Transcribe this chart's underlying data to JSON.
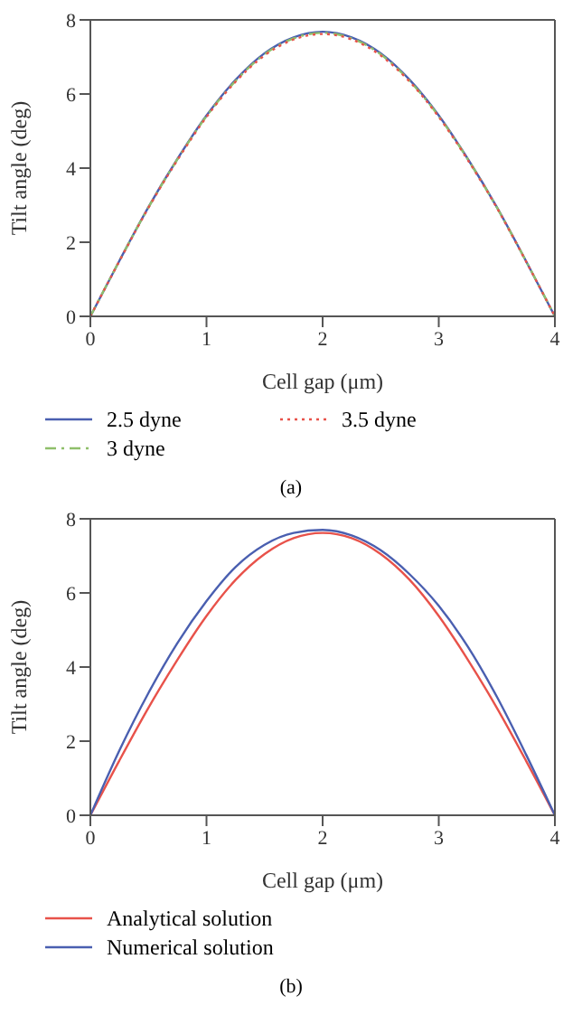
{
  "chart_data": [
    {
      "type": "line",
      "xlabel": "Cell gap (μm)",
      "ylabel": "Tilt angle (deg)",
      "x": [
        0,
        0.25,
        0.5,
        0.75,
        1,
        1.25,
        1.5,
        1.75,
        2,
        2.25,
        2.5,
        2.75,
        3,
        3.25,
        3.5,
        3.75,
        4
      ],
      "xlim": [
        0,
        4
      ],
      "xticks": [
        0,
        1,
        2,
        3,
        4
      ],
      "ylim": [
        0,
        8
      ],
      "yticks": [
        0,
        2,
        4,
        6,
        8
      ],
      "legend": "bottom",
      "grid": false,
      "annotations": [
        "(a)"
      ],
      "series": [
        {
          "name": "2.5 dyne",
          "color": "#4a5fb0",
          "line_style": "solid",
          "values": [
            0,
            1.5,
            2.95,
            4.25,
            5.42,
            6.38,
            7.1,
            7.53,
            7.68,
            7.53,
            7.1,
            6.38,
            5.42,
            4.25,
            2.95,
            1.5,
            0
          ]
        },
        {
          "name": "3 dyne",
          "color": "#8fbf6a",
          "line_style": "dashdot",
          "values": [
            0,
            1.5,
            2.94,
            4.24,
            5.4,
            6.35,
            7.07,
            7.5,
            7.65,
            7.5,
            7.07,
            6.35,
            5.4,
            4.24,
            2.94,
            1.5,
            0
          ]
        },
        {
          "name": "3.5 dyne",
          "color": "#e8524a",
          "line_style": "dotted",
          "values": [
            0,
            1.49,
            2.93,
            4.22,
            5.38,
            6.33,
            7.04,
            7.47,
            7.62,
            7.47,
            7.04,
            6.33,
            5.38,
            4.22,
            2.93,
            1.49,
            0
          ]
        }
      ]
    },
    {
      "type": "line",
      "xlabel": "Cell gap (μm)",
      "ylabel": "Tilt angle (deg)",
      "x": [
        0,
        0.25,
        0.5,
        0.75,
        1,
        1.25,
        1.5,
        1.75,
        2,
        2.25,
        2.5,
        2.75,
        3,
        3.25,
        3.5,
        3.75,
        4
      ],
      "xlim": [
        0,
        4
      ],
      "xticks": [
        0,
        1,
        2,
        3,
        4
      ],
      "ylim": [
        0,
        8
      ],
      "yticks": [
        0,
        2,
        4,
        6,
        8
      ],
      "legend": "bottom",
      "grid": false,
      "annotations": [
        "(b)"
      ],
      "series": [
        {
          "name": "Analytical solution",
          "color": "#e8524a",
          "line_style": "solid",
          "values": [
            0,
            1.48,
            2.9,
            4.2,
            5.38,
            6.35,
            7.05,
            7.48,
            7.62,
            7.48,
            7.05,
            6.35,
            5.38,
            4.2,
            2.9,
            1.48,
            0
          ]
        },
        {
          "name": "Numerical solution",
          "color": "#4a5fb0",
          "line_style": "solid",
          "values": [
            0,
            1.75,
            3.3,
            4.65,
            5.78,
            6.7,
            7.3,
            7.62,
            7.7,
            7.55,
            7.15,
            6.5,
            5.65,
            4.55,
            3.2,
            1.65,
            0
          ]
        }
      ]
    }
  ]
}
